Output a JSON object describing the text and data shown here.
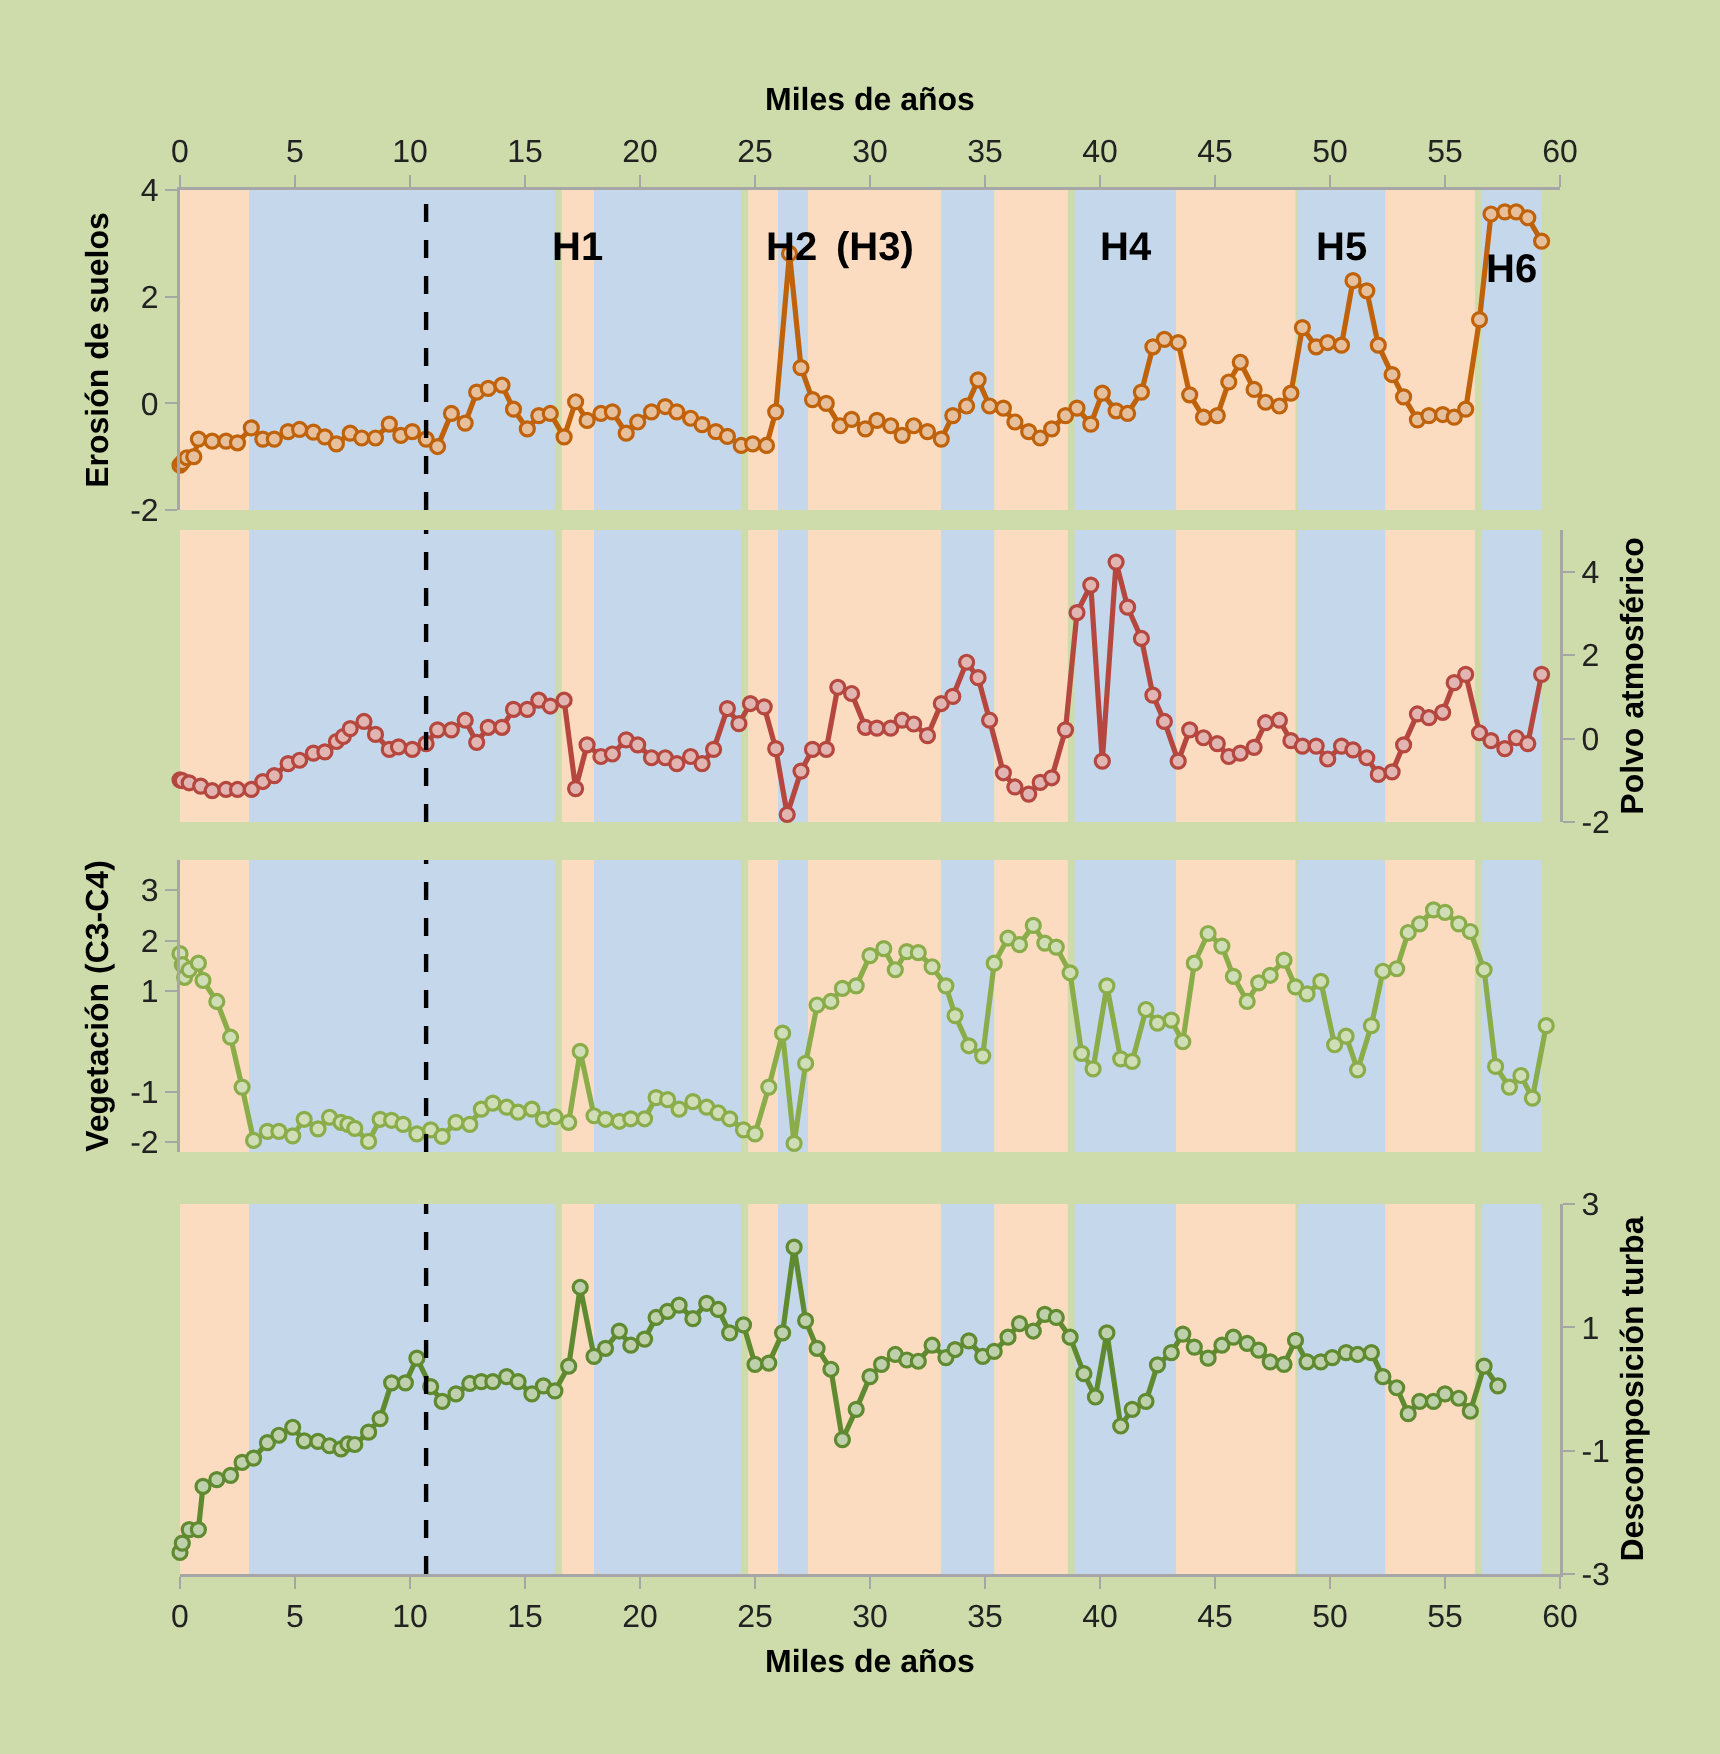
{
  "chart_data": [
    {
      "type": "line",
      "xlabel": "Miles de años",
      "ylabel": "Erosión de suelos",
      "xlim": [
        0,
        60
      ],
      "xticks": [
        0,
        5,
        10,
        15,
        20,
        25,
        30,
        35,
        40,
        45,
        50,
        55,
        60
      ],
      "ylim": [
        -2,
        4
      ],
      "yticks": [
        4,
        2,
        0,
        -2
      ],
      "marker": "circle",
      "line_style": "solid",
      "series": [
        {
          "color": "#c0620a",
          "x": [
            0.0,
            0.1,
            0.3,
            0.6,
            0.8,
            1.4,
            2.0,
            2.5,
            3.1,
            3.6,
            4.1,
            4.7,
            5.2,
            5.8,
            6.3,
            6.8,
            7.4,
            7.9,
            8.5,
            9.1,
            9.6,
            10.1,
            10.7,
            11.2,
            11.8,
            12.4,
            12.9,
            13.4,
            14.0,
            14.5,
            15.1,
            15.6,
            16.1,
            16.7,
            17.2,
            17.7,
            18.3,
            18.8,
            19.4,
            19.9,
            20.5,
            21.1,
            21.6,
            22.2,
            22.7,
            23.3,
            23.8,
            24.4,
            24.9,
            25.5,
            25.9,
            26.5,
            27.0,
            27.5,
            28.1,
            28.7,
            29.2,
            29.8,
            30.3,
            30.9,
            31.4,
            31.9,
            32.5,
            33.1,
            33.6,
            34.2,
            34.7,
            35.2,
            35.8,
            36.3,
            36.9,
            37.4,
            37.9,
            38.5,
            39.0,
            39.6,
            40.1,
            40.7,
            41.2,
            41.8,
            42.3,
            42.8,
            43.4,
            43.9,
            44.5,
            45.1,
            45.6,
            46.1,
            46.7,
            47.2,
            47.8,
            48.3,
            48.8,
            49.4,
            49.9,
            50.5,
            51.0,
            51.6,
            52.1,
            52.7,
            53.2,
            53.8,
            54.3,
            54.9,
            55.4,
            55.9,
            56.5,
            57.0,
            57.6,
            58.1,
            58.6,
            59.2
          ],
          "values": [
            -1.16,
            -1.11,
            -1.02,
            -1.0,
            -0.67,
            -0.71,
            -0.71,
            -0.74,
            -0.46,
            -0.67,
            -0.67,
            -0.53,
            -0.49,
            -0.54,
            -0.63,
            -0.76,
            -0.56,
            -0.65,
            -0.65,
            -0.39,
            -0.6,
            -0.53,
            -0.67,
            -0.81,
            -0.19,
            -0.37,
            0.21,
            0.28,
            0.34,
            -0.11,
            -0.48,
            -0.23,
            -0.19,
            -0.63,
            0.03,
            -0.32,
            -0.19,
            -0.16,
            -0.56,
            -0.35,
            -0.16,
            -0.06,
            -0.16,
            -0.28,
            -0.4,
            -0.53,
            -0.62,
            -0.79,
            -0.76,
            -0.79,
            -0.16,
            2.81,
            0.67,
            0.07,
            0.0,
            -0.42,
            -0.3,
            -0.48,
            -0.32,
            -0.42,
            -0.6,
            -0.42,
            -0.53,
            -0.67,
            -0.23,
            -0.05,
            0.44,
            -0.05,
            -0.09,
            -0.35,
            -0.53,
            -0.65,
            -0.48,
            -0.23,
            -0.09,
            -0.39,
            0.19,
            -0.14,
            -0.19,
            0.21,
            1.06,
            1.2,
            1.14,
            0.16,
            -0.26,
            -0.23,
            0.4,
            0.77,
            0.26,
            0.02,
            -0.05,
            0.19,
            1.42,
            1.06,
            1.14,
            1.09,
            2.3,
            2.11,
            1.09,
            0.54,
            0.12,
            -0.31,
            -0.23,
            -0.21,
            -0.26,
            -0.11,
            1.57,
            3.55,
            3.59,
            3.59,
            3.48,
            3.04
          ]
        }
      ],
      "bands": [
        {
          "axis": "x",
          "from": 0,
          "to": 3.0,
          "color": "#fbdcc1"
        },
        {
          "axis": "x",
          "from": 3.0,
          "to": 16.3,
          "color": "#c5d8eb"
        },
        {
          "axis": "x",
          "from": 16.6,
          "to": 18.0,
          "color": "#fbdcc1",
          "label": "H1"
        },
        {
          "axis": "x",
          "from": 18.0,
          "to": 24.4,
          "color": "#c5d8eb"
        },
        {
          "axis": "x",
          "from": 24.7,
          "to": 26.0,
          "color": "#fbdcc1"
        },
        {
          "axis": "x",
          "from": 26.0,
          "to": 27.3,
          "color": "#c5d8eb",
          "label": "H2"
        },
        {
          "axis": "x",
          "from": 27.3,
          "to": 33.1,
          "color": "#fbdcc1",
          "label": "(H3)"
        },
        {
          "axis": "x",
          "from": 33.1,
          "to": 35.4,
          "color": "#c5d8eb"
        },
        {
          "axis": "x",
          "from": 35.4,
          "to": 38.6,
          "color": "#fbdcc1"
        },
        {
          "axis": "x",
          "from": 38.9,
          "to": 43.3,
          "color": "#c5d8eb",
          "label": "H4"
        },
        {
          "axis": "x",
          "from": 43.3,
          "to": 48.5,
          "color": "#fbdcc1"
        },
        {
          "axis": "x",
          "from": 48.6,
          "to": 52.4,
          "color": "#c5d8eb",
          "label": "H5"
        },
        {
          "axis": "x",
          "from": 52.4,
          "to": 56.3,
          "color": "#fbdcc1"
        },
        {
          "axis": "x",
          "from": 56.6,
          "to": 59.2,
          "color": "#c5d8eb",
          "label": "H6"
        }
      ],
      "ref_lines": [
        {
          "axis": "x",
          "value": 10.7,
          "color": "#000000",
          "line_style": "dashed"
        }
      ]
    },
    {
      "type": "line",
      "ylabel": "Polvo atmosférico",
      "xlim": [
        0,
        60
      ],
      "tick_labels": "y",
      "ylim": [
        -2,
        5
      ],
      "yticks": [
        4,
        2,
        0,
        -2
      ],
      "marker": "circle",
      "line_style": "solid",
      "series": [
        {
          "color": "#b5473e",
          "x": [
            0.0,
            0.1,
            0.4,
            0.9,
            1.4,
            2.0,
            2.5,
            3.1,
            3.6,
            4.1,
            4.7,
            5.2,
            5.8,
            6.3,
            6.8,
            7.1,
            7.4,
            8.0,
            8.5,
            9.1,
            9.5,
            10.1,
            10.7,
            11.2,
            11.8,
            12.4,
            12.9,
            13.4,
            14.0,
            14.5,
            15.1,
            15.6,
            16.1,
            16.7,
            17.2,
            17.7,
            18.3,
            18.8,
            19.4,
            19.9,
            20.5,
            21.1,
            21.6,
            22.2,
            22.7,
            23.2,
            23.8,
            24.3,
            24.8,
            25.4,
            25.9,
            26.4,
            27.0,
            27.5,
            28.1,
            28.6,
            29.2,
            29.8,
            30.3,
            30.9,
            31.4,
            31.9,
            32.5,
            33.1,
            33.6,
            34.2,
            34.7,
            35.2,
            35.8,
            36.3,
            36.9,
            37.4,
            37.9,
            38.5,
            39.0,
            39.6,
            40.1,
            40.7,
            41.2,
            41.8,
            42.3,
            42.8,
            43.4,
            43.9,
            44.5,
            45.1,
            45.6,
            46.1,
            46.7,
            47.2,
            47.8,
            48.3,
            48.8,
            49.4,
            49.9,
            50.5,
            51.0,
            51.6,
            52.1,
            52.7,
            53.2,
            53.8,
            54.3,
            54.9,
            55.4,
            55.9,
            56.5,
            57.0,
            57.6,
            58.1,
            58.6,
            59.2
          ],
          "values": [
            -0.99,
            -1.01,
            -1.06,
            -1.14,
            -1.25,
            -1.22,
            -1.22,
            -1.22,
            -1.03,
            -0.89,
            -0.6,
            -0.52,
            -0.35,
            -0.32,
            -0.07,
            0.05,
            0.24,
            0.41,
            0.1,
            -0.26,
            -0.2,
            -0.26,
            -0.12,
            0.21,
            0.21,
            0.44,
            -0.09,
            0.27,
            0.27,
            0.7,
            0.7,
            0.92,
            0.78,
            0.92,
            -1.2,
            -0.15,
            -0.43,
            -0.37,
            -0.03,
            -0.15,
            -0.46,
            -0.46,
            -0.6,
            -0.43,
            -0.6,
            -0.26,
            0.72,
            0.36,
            0.84,
            0.76,
            -0.24,
            -1.82,
            -0.78,
            -0.26,
            -0.26,
            1.23,
            1.08,
            0.27,
            0.25,
            0.25,
            0.44,
            0.35,
            0.07,
            0.84,
            1.01,
            1.83,
            1.46,
            0.44,
            -0.82,
            -1.16,
            -1.33,
            -1.05,
            -0.94,
            0.21,
            3.02,
            3.68,
            -0.54,
            4.23,
            3.15,
            2.4,
            1.04,
            0.41,
            -0.54,
            0.21,
            0.02,
            -0.12,
            -0.43,
            -0.35,
            -0.21,
            0.38,
            0.44,
            -0.05,
            -0.18,
            -0.18,
            -0.49,
            -0.18,
            -0.27,
            -0.46,
            -0.86,
            -0.8,
            -0.15,
            0.59,
            0.5,
            0.63,
            1.34,
            1.54,
            0.14,
            -0.05,
            -0.24,
            0.02,
            -0.12,
            1.54
          ]
        }
      ],
      "bands": [
        {
          "axis": "x",
          "from": 0,
          "to": 3.0,
          "color": "#fbdcc1"
        },
        {
          "axis": "x",
          "from": 3.0,
          "to": 16.3,
          "color": "#c5d8eb"
        },
        {
          "axis": "x",
          "from": 16.6,
          "to": 18.0,
          "color": "#fbdcc1"
        },
        {
          "axis": "x",
          "from": 18.0,
          "to": 24.4,
          "color": "#c5d8eb"
        },
        {
          "axis": "x",
          "from": 24.7,
          "to": 26.0,
          "color": "#fbdcc1"
        },
        {
          "axis": "x",
          "from": 26.0,
          "to": 27.3,
          "color": "#c5d8eb"
        },
        {
          "axis": "x",
          "from": 27.3,
          "to": 33.1,
          "color": "#fbdcc1"
        },
        {
          "axis": "x",
          "from": 33.1,
          "to": 35.4,
          "color": "#c5d8eb"
        },
        {
          "axis": "x",
          "from": 35.4,
          "to": 38.6,
          "color": "#fbdcc1"
        },
        {
          "axis": "x",
          "from": 38.9,
          "to": 43.3,
          "color": "#c5d8eb"
        },
        {
          "axis": "x",
          "from": 43.3,
          "to": 48.5,
          "color": "#fbdcc1"
        },
        {
          "axis": "x",
          "from": 48.6,
          "to": 52.4,
          "color": "#c5d8eb"
        },
        {
          "axis": "x",
          "from": 52.4,
          "to": 56.3,
          "color": "#fbdcc1"
        },
        {
          "axis": "x",
          "from": 56.6,
          "to": 59.2,
          "color": "#c5d8eb"
        }
      ],
      "ref_lines": [
        {
          "axis": "x",
          "value": 10.7,
          "color": "#000000",
          "line_style": "dashed"
        }
      ]
    },
    {
      "type": "line",
      "ylabel": "Vegetación (C3-C4)",
      "xlim": [
        0,
        60
      ],
      "tick_labels": "y",
      "ylim": [
        -2.2,
        3.6
      ],
      "yticks": [
        3,
        2,
        1,
        -1,
        -2
      ],
      "marker": "circle",
      "line_style": "solid",
      "series": [
        {
          "color": "#8aad4a",
          "x": [
            0.0,
            0.1,
            0.2,
            0.4,
            0.8,
            1.0,
            1.6,
            2.2,
            2.7,
            3.2,
            3.8,
            4.3,
            4.9,
            5.4,
            6.0,
            6.5,
            7.0,
            7.3,
            7.6,
            8.2,
            8.7,
            9.2,
            9.7,
            10.3,
            10.9,
            11.4,
            12.0,
            12.6,
            13.1,
            13.6,
            14.2,
            14.7,
            15.3,
            15.8,
            16.3,
            16.9,
            17.4,
            18.0,
            18.5,
            19.1,
            19.6,
            20.2,
            20.7,
            21.2,
            21.7,
            22.3,
            22.9,
            23.4,
            23.9,
            24.5,
            25.0,
            25.6,
            26.2,
            26.7,
            27.2,
            27.7,
            28.3,
            28.8,
            29.4,
            30.0,
            30.6,
            31.1,
            31.6,
            32.1,
            32.7,
            33.3,
            33.7,
            34.3,
            34.9,
            35.4,
            36.0,
            36.5,
            37.1,
            37.6,
            38.1,
            38.7,
            39.2,
            39.7,
            40.3,
            40.9,
            41.4,
            42.0,
            42.5,
            43.1,
            43.6,
            44.1,
            44.7,
            45.3,
            45.8,
            46.4,
            46.9,
            47.4,
            48.0,
            48.5,
            49.0,
            49.6,
            50.2,
            50.7,
            51.2,
            51.8,
            52.3,
            52.9,
            53.4,
            53.9,
            54.5,
            55.0,
            55.6,
            56.1,
            56.7,
            57.2,
            57.8,
            58.3,
            58.8,
            59.4
          ],
          "values": [
            1.74,
            1.52,
            1.27,
            1.42,
            1.55,
            1.21,
            0.79,
            0.08,
            -0.91,
            -1.97,
            -1.79,
            -1.79,
            -1.88,
            -1.55,
            -1.74,
            -1.51,
            -1.61,
            -1.65,
            -1.73,
            -1.99,
            -1.55,
            -1.57,
            -1.65,
            -1.84,
            -1.76,
            -1.89,
            -1.61,
            -1.65,
            -1.35,
            -1.23,
            -1.31,
            -1.41,
            -1.35,
            -1.55,
            -1.5,
            -1.61,
            -0.2,
            -1.48,
            -1.55,
            -1.59,
            -1.54,
            -1.54,
            -1.12,
            -1.16,
            -1.35,
            -1.2,
            -1.31,
            -1.42,
            -1.54,
            -1.76,
            -1.84,
            -0.91,
            0.16,
            -2.03,
            -0.44,
            0.72,
            0.79,
            1.05,
            1.1,
            1.7,
            1.84,
            1.42,
            1.78,
            1.76,
            1.48,
            1.1,
            0.51,
            -0.09,
            -0.29,
            1.55,
            2.05,
            1.92,
            2.3,
            1.95,
            1.87,
            1.36,
            -0.24,
            -0.55,
            1.1,
            -0.35,
            -0.4,
            0.63,
            0.36,
            0.42,
            -0.01,
            1.55,
            2.14,
            1.89,
            1.29,
            0.79,
            1.16,
            1.31,
            1.61,
            1.08,
            0.94,
            1.19,
            -0.07,
            0.1,
            -0.57,
            0.31,
            1.39,
            1.44,
            2.16,
            2.33,
            2.61,
            2.56,
            2.33,
            2.18,
            1.42,
            -0.5,
            -0.91,
            -0.68,
            -1.13,
            0.31
          ]
        }
      ],
      "bands": [
        {
          "axis": "x",
          "from": 0,
          "to": 3.0,
          "color": "#fbdcc1"
        },
        {
          "axis": "x",
          "from": 3.0,
          "to": 16.3,
          "color": "#c5d8eb"
        },
        {
          "axis": "x",
          "from": 16.6,
          "to": 18.0,
          "color": "#fbdcc1"
        },
        {
          "axis": "x",
          "from": 18.0,
          "to": 24.4,
          "color": "#c5d8eb"
        },
        {
          "axis": "x",
          "from": 24.7,
          "to": 26.0,
          "color": "#fbdcc1"
        },
        {
          "axis": "x",
          "from": 26.0,
          "to": 27.3,
          "color": "#c5d8eb"
        },
        {
          "axis": "x",
          "from": 27.3,
          "to": 33.1,
          "color": "#fbdcc1"
        },
        {
          "axis": "x",
          "from": 33.1,
          "to": 35.4,
          "color": "#c5d8eb"
        },
        {
          "axis": "x",
          "from": 35.4,
          "to": 38.6,
          "color": "#fbdcc1"
        },
        {
          "axis": "x",
          "from": 38.9,
          "to": 43.3,
          "color": "#c5d8eb"
        },
        {
          "axis": "x",
          "from": 43.3,
          "to": 48.5,
          "color": "#fbdcc1"
        },
        {
          "axis": "x",
          "from": 48.6,
          "to": 52.4,
          "color": "#c5d8eb"
        },
        {
          "axis": "x",
          "from": 52.4,
          "to": 56.3,
          "color": "#fbdcc1"
        },
        {
          "axis": "x",
          "from": 56.6,
          "to": 59.2,
          "color": "#c5d8eb"
        }
      ],
      "ref_lines": [
        {
          "axis": "x",
          "value": 10.7,
          "color": "#000000",
          "line_style": "dashed"
        }
      ]
    },
    {
      "type": "line",
      "xlabel": "Miles de años",
      "ylabel": "Descomposición turba",
      "xlim": [
        0,
        60
      ],
      "xticks": [
        0,
        5,
        10,
        15,
        20,
        25,
        30,
        35,
        40,
        45,
        50,
        55,
        60
      ],
      "ylim": [
        -3,
        3
      ],
      "yticks": [
        3,
        1,
        -1,
        -3
      ],
      "marker": "circle",
      "line_style": "solid",
      "series": [
        {
          "color": "#5f8a2f",
          "x": [
            0.0,
            0.1,
            0.4,
            0.8,
            1.0,
            1.6,
            2.2,
            2.7,
            3.2,
            3.8,
            4.3,
            4.9,
            5.4,
            6.0,
            6.5,
            7.0,
            7.3,
            7.6,
            8.2,
            8.7,
            9.2,
            9.8,
            10.3,
            10.9,
            11.4,
            12.0,
            12.6,
            13.1,
            13.6,
            14.2,
            14.7,
            15.3,
            15.8,
            16.3,
            16.9,
            17.4,
            18.0,
            18.5,
            19.1,
            19.6,
            20.2,
            20.7,
            21.2,
            21.7,
            22.3,
            22.9,
            23.4,
            23.9,
            24.5,
            25.0,
            25.6,
            26.2,
            26.7,
            27.2,
            27.7,
            28.3,
            28.8,
            29.4,
            30.0,
            30.5,
            31.1,
            31.6,
            32.1,
            32.7,
            33.3,
            33.7,
            34.3,
            34.9,
            35.4,
            36.0,
            36.5,
            37.1,
            37.6,
            38.1,
            38.7,
            39.3,
            39.8,
            40.3,
            40.9,
            41.4,
            42.0,
            42.5,
            43.1,
            43.6,
            44.1,
            44.7,
            45.3,
            45.8,
            46.4,
            46.9,
            47.4,
            48.0,
            48.5,
            49.0,
            49.6,
            50.1,
            50.7,
            51.2,
            51.8,
            52.3,
            52.9,
            53.4,
            53.9,
            54.5,
            55.0,
            55.6,
            56.1,
            56.7,
            57.3
          ],
          "values": [
            -2.65,
            -2.5,
            -2.28,
            -2.28,
            -1.58,
            -1.47,
            -1.4,
            -1.19,
            -1.12,
            -0.87,
            -0.75,
            -0.62,
            -0.84,
            -0.85,
            -0.92,
            -0.97,
            -0.89,
            -0.9,
            -0.7,
            -0.48,
            0.1,
            0.1,
            0.5,
            0.04,
            -0.2,
            -0.08,
            0.09,
            0.12,
            0.12,
            0.2,
            0.12,
            -0.08,
            0.05,
            -0.03,
            0.37,
            1.65,
            0.53,
            0.66,
            0.94,
            0.71,
            0.81,
            1.16,
            1.26,
            1.36,
            1.14,
            1.39,
            1.29,
            0.91,
            1.04,
            0.4,
            0.42,
            0.91,
            2.3,
            1.11,
            0.66,
            0.32,
            -0.82,
            -0.33,
            0.2,
            0.4,
            0.56,
            0.47,
            0.45,
            0.71,
            0.51,
            0.64,
            0.78,
            0.53,
            0.61,
            0.84,
            1.06,
            0.94,
            1.21,
            1.16,
            0.84,
            0.25,
            -0.13,
            0.91,
            -0.6,
            -0.33,
            -0.2,
            0.39,
            0.59,
            0.89,
            0.68,
            0.5,
            0.71,
            0.84,
            0.74,
            0.63,
            0.44,
            0.4,
            0.79,
            0.44,
            0.44,
            0.51,
            0.59,
            0.56,
            0.59,
            0.2,
            0.02,
            -0.4,
            -0.2,
            -0.2,
            -0.08,
            -0.15,
            -0.36,
            0.37,
            0.05
          ]
        }
      ],
      "bands": [
        {
          "axis": "x",
          "from": 0,
          "to": 3.0,
          "color": "#fbdcc1"
        },
        {
          "axis": "x",
          "from": 3.0,
          "to": 16.3,
          "color": "#c5d8eb"
        },
        {
          "axis": "x",
          "from": 16.6,
          "to": 18.0,
          "color": "#fbdcc1"
        },
        {
          "axis": "x",
          "from": 18.0,
          "to": 24.4,
          "color": "#c5d8eb"
        },
        {
          "axis": "x",
          "from": 24.7,
          "to": 26.0,
          "color": "#fbdcc1"
        },
        {
          "axis": "x",
          "from": 26.0,
          "to": 27.3,
          "color": "#c5d8eb"
        },
        {
          "axis": "x",
          "from": 27.3,
          "to": 33.1,
          "color": "#fbdcc1"
        },
        {
          "axis": "x",
          "from": 33.1,
          "to": 35.4,
          "color": "#c5d8eb"
        },
        {
          "axis": "x",
          "from": 35.4,
          "to": 38.6,
          "color": "#fbdcc1"
        },
        {
          "axis": "x",
          "from": 38.9,
          "to": 43.3,
          "color": "#c5d8eb"
        },
        {
          "axis": "x",
          "from": 43.3,
          "to": 48.5,
          "color": "#fbdcc1"
        },
        {
          "axis": "x",
          "from": 48.6,
          "to": 52.4,
          "color": "#c5d8eb"
        },
        {
          "axis": "x",
          "from": 52.4,
          "to": 56.3,
          "color": "#fbdcc1"
        },
        {
          "axis": "x",
          "from": 56.6,
          "to": 59.2,
          "color": "#c5d8eb"
        }
      ],
      "ref_lines": [
        {
          "axis": "x",
          "value": 10.7,
          "color": "#000000",
          "line_style": "dashed"
        }
      ]
    }
  ]
}
